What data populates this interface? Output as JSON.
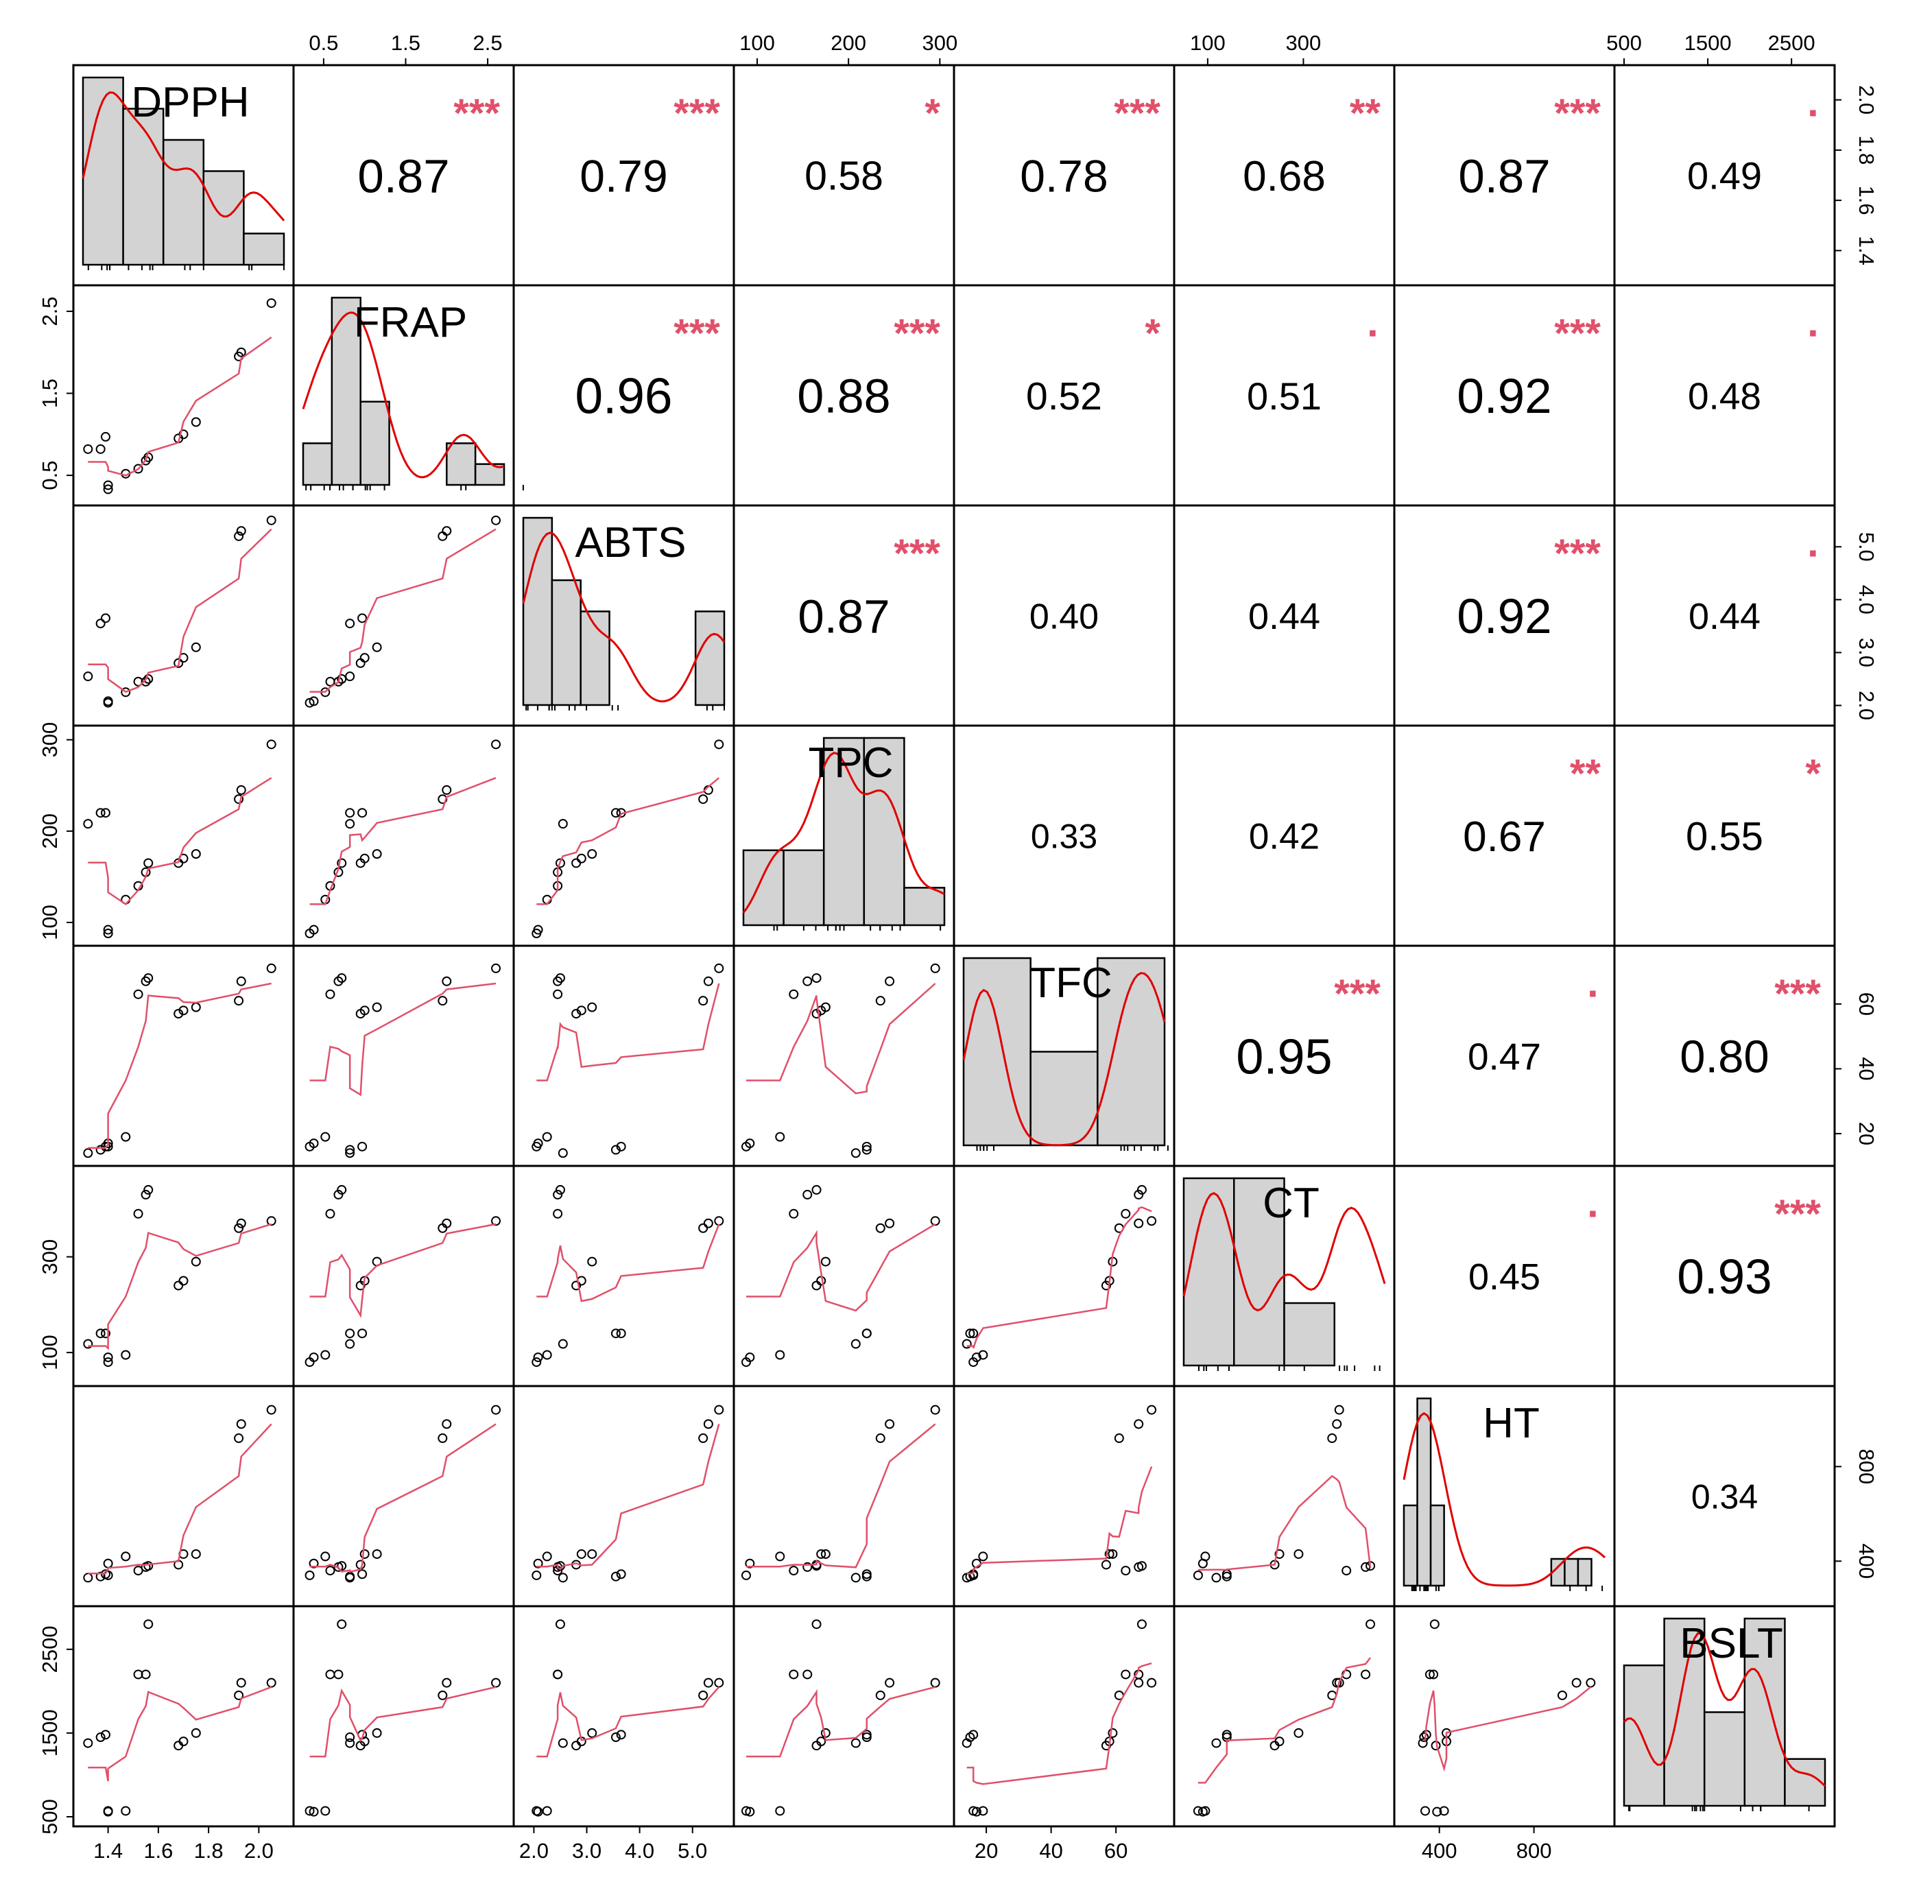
{
  "chart_data": {
    "type": "scatter",
    "variables": [
      "DPPH",
      "FRAP",
      "ABTS",
      "TPC",
      "TFC",
      "CT",
      "HT",
      "BSLT"
    ],
    "ticks": [
      {
        "values": [
          1.4,
          1.6,
          1.8,
          2.0
        ],
        "labels": [
          "1.4",
          "1.6",
          "1.8",
          "2.0"
        ],
        "side": "right,bottom"
      },
      {
        "values": [
          0.5,
          1.5,
          2.5
        ],
        "labels": [
          "0.5",
          "1.5",
          "2.5"
        ],
        "side": "top,left"
      },
      {
        "values": [
          2.0,
          3.0,
          4.0,
          5.0
        ],
        "labels": [
          "2.0",
          "3.0",
          "4.0",
          "5.0"
        ],
        "side": "right,bottom"
      },
      {
        "values": [
          100,
          200,
          300
        ],
        "labels": [
          "100",
          "200",
          "300"
        ],
        "side": "top,left"
      },
      {
        "values": [
          20,
          40,
          60
        ],
        "labels": [
          "20",
          "40",
          "60"
        ],
        "side": "right,bottom"
      },
      {
        "values": [
          100,
          300
        ],
        "labels": [
          "100",
          "300"
        ],
        "side": "top,left"
      },
      {
        "values": [
          400,
          800
        ],
        "labels": [
          "400",
          "800"
        ],
        "side": "right,bottom"
      },
      {
        "values": [
          500,
          1500,
          2500
        ],
        "labels": [
          "500",
          "1500",
          "2500"
        ],
        "side": "top,left"
      }
    ],
    "ranges": [
      [
        1.3,
        2.1
      ],
      [
        0.25,
        2.7
      ],
      [
        1.8,
        5.6
      ],
      [
        85,
        305
      ],
      [
        13,
        75
      ],
      [
        50,
        470
      ],
      [
        250,
        1100
      ],
      [
        500,
        2900
      ]
    ],
    "observations": [
      {
        "DPPH": 1.32,
        "FRAP": 0.82,
        "ABTS": 2.55,
        "TPC": 208,
        "TFC": 14,
        "CT": 118,
        "HT": 330,
        "BSLT": 1380
      },
      {
        "DPPH": 1.37,
        "FRAP": 0.82,
        "ABTS": 3.55,
        "TPC": 220,
        "TFC": 15,
        "CT": 140,
        "HT": 335,
        "BSLT": 1450
      },
      {
        "DPPH": 1.39,
        "FRAP": 0.97,
        "ABTS": 3.65,
        "TPC": 220,
        "TFC": 16,
        "CT": 140,
        "HT": 345,
        "BSLT": 1480
      },
      {
        "DPPH": 1.4,
        "FRAP": 0.33,
        "ABTS": 2.05,
        "TPC": 88,
        "TFC": 16,
        "CT": 80,
        "HT": 340,
        "BSLT": 570
      },
      {
        "DPPH": 1.4,
        "FRAP": 0.38,
        "ABTS": 2.08,
        "TPC": 92,
        "TFC": 17,
        "CT": 90,
        "HT": 390,
        "BSLT": 560
      },
      {
        "DPPH": 1.47,
        "FRAP": 0.52,
        "ABTS": 2.25,
        "TPC": 125,
        "TFC": 19,
        "CT": 95,
        "HT": 420,
        "BSLT": 570
      },
      {
        "DPPH": 1.52,
        "FRAP": 0.58,
        "ABTS": 2.45,
        "TPC": 140,
        "TFC": 63,
        "CT": 390,
        "HT": 360,
        "BSLT": 2200
      },
      {
        "DPPH": 1.55,
        "FRAP": 0.68,
        "ABTS": 2.45,
        "TPC": 155,
        "TFC": 67,
        "CT": 430,
        "HT": 375,
        "BSLT": 2200
      },
      {
        "DPPH": 1.56,
        "FRAP": 0.72,
        "ABTS": 2.5,
        "TPC": 165,
        "TFC": 68,
        "CT": 440,
        "HT": 380,
        "BSLT": 2800
      },
      {
        "DPPH": 1.68,
        "FRAP": 0.95,
        "ABTS": 2.8,
        "TPC": 165,
        "TFC": 57,
        "CT": 240,
        "HT": 385,
        "BSLT": 1350
      },
      {
        "DPPH": 1.7,
        "FRAP": 1.0,
        "ABTS": 2.9,
        "TPC": 170,
        "TFC": 58,
        "CT": 250,
        "HT": 430,
        "BSLT": 1400
      },
      {
        "DPPH": 1.75,
        "FRAP": 1.15,
        "ABTS": 3.1,
        "TPC": 175,
        "TFC": 59,
        "CT": 290,
        "HT": 430,
        "BSLT": 1500
      },
      {
        "DPPH": 1.92,
        "FRAP": 1.95,
        "ABTS": 5.2,
        "TPC": 235,
        "TFC": 61,
        "CT": 360,
        "HT": 920,
        "BSLT": 1950
      },
      {
        "DPPH": 1.93,
        "FRAP": 2.0,
        "ABTS": 5.3,
        "TPC": 245,
        "TFC": 67,
        "CT": 370,
        "HT": 980,
        "BSLT": 2100
      },
      {
        "DPPH": 2.05,
        "FRAP": 2.6,
        "ABTS": 5.5,
        "TPC": 295,
        "TFC": 71,
        "CT": 375,
        "HT": 1040,
        "BSLT": 2100
      }
    ],
    "correlations": [
      {
        "row": 0,
        "col": 1,
        "value": "0.87",
        "stars": "***"
      },
      {
        "row": 0,
        "col": 2,
        "value": "0.79",
        "stars": "***"
      },
      {
        "row": 0,
        "col": 3,
        "value": "0.58",
        "stars": "*"
      },
      {
        "row": 0,
        "col": 4,
        "value": "0.78",
        "stars": "***"
      },
      {
        "row": 0,
        "col": 5,
        "value": "0.68",
        "stars": "**"
      },
      {
        "row": 0,
        "col": 6,
        "value": "0.87",
        "stars": "***"
      },
      {
        "row": 0,
        "col": 7,
        "value": "0.49",
        "stars": "·"
      },
      {
        "row": 1,
        "col": 2,
        "value": "0.96",
        "stars": "***"
      },
      {
        "row": 1,
        "col": 3,
        "value": "0.88",
        "stars": "***"
      },
      {
        "row": 1,
        "col": 4,
        "value": "0.52",
        "stars": "*"
      },
      {
        "row": 1,
        "col": 5,
        "value": "0.51",
        "stars": "·"
      },
      {
        "row": 1,
        "col": 6,
        "value": "0.92",
        "stars": "***"
      },
      {
        "row": 1,
        "col": 7,
        "value": "0.48",
        "stars": "·"
      },
      {
        "row": 2,
        "col": 3,
        "value": "0.87",
        "stars": "***"
      },
      {
        "row": 2,
        "col": 4,
        "value": "0.40",
        "stars": ""
      },
      {
        "row": 2,
        "col": 5,
        "value": "0.44",
        "stars": ""
      },
      {
        "row": 2,
        "col": 6,
        "value": "0.92",
        "stars": "***"
      },
      {
        "row": 2,
        "col": 7,
        "value": "0.44",
        "stars": "·"
      },
      {
        "row": 3,
        "col": 4,
        "value": "0.33",
        "stars": ""
      },
      {
        "row": 3,
        "col": 5,
        "value": "0.42",
        "stars": ""
      },
      {
        "row": 3,
        "col": 6,
        "value": "0.67",
        "stars": "**"
      },
      {
        "row": 3,
        "col": 7,
        "value": "0.55",
        "stars": "*"
      },
      {
        "row": 4,
        "col": 5,
        "value": "0.95",
        "stars": "***"
      },
      {
        "row": 4,
        "col": 6,
        "value": "0.47",
        "stars": "·"
      },
      {
        "row": 4,
        "col": 7,
        "value": "0.80",
        "stars": "***"
      },
      {
        "row": 5,
        "col": 6,
        "value": "0.45",
        "stars": "·"
      },
      {
        "row": 5,
        "col": 7,
        "value": "0.93",
        "stars": "***"
      },
      {
        "row": 6,
        "col": 7,
        "value": "0.34",
        "stars": ""
      }
    ],
    "histograms": [
      {
        "var": "DPPH",
        "breaks": [
          1.3,
          1.45,
          1.6,
          1.75,
          1.9,
          2.05
        ],
        "counts": [
          6,
          5,
          4,
          3,
          1
        ]
      },
      {
        "var": "FRAP",
        "breaks": [
          0.3,
          0.6,
          0.9,
          1.2,
          1.5,
          1.8,
          2.1,
          2.4
        ],
        "counts": [
          2,
          9,
          4,
          0,
          0,
          2,
          1
        ]
      },
      {
        "var": "ABTS",
        "breaks": [
          2.0,
          2.5,
          3.0,
          3.5,
          4.0,
          4.5,
          5.0,
          5.5
        ],
        "counts": [
          6,
          4,
          3,
          0,
          0,
          0,
          3
        ]
      },
      {
        "var": "TPC",
        "breaks": [
          50,
          100,
          150,
          200,
          250,
          300
        ],
        "counts": [
          2,
          2,
          5,
          5,
          1
        ]
      },
      {
        "var": "TFC",
        "breaks": [
          10,
          30,
          50,
          70
        ],
        "counts": [
          8,
          4,
          8
        ]
      },
      {
        "var": "CT",
        "breaks": [
          50,
          150,
          250,
          350,
          450
        ],
        "counts": [
          6,
          6,
          2,
          0
        ]
      },
      {
        "var": "HT",
        "breaks": [
          300,
          350,
          400,
          450,
          500,
          550,
          600,
          650,
          700,
          750,
          800,
          850,
          900,
          950,
          1000,
          1050
        ],
        "counts": [
          3,
          7,
          3,
          0,
          0,
          0,
          0,
          0,
          0,
          0,
          0,
          1,
          1,
          1,
          0
        ]
      },
      {
        "var": "BSLT",
        "breaks": [
          500,
          1000,
          1500,
          2000,
          2500,
          3000
        ],
        "counts": [
          3,
          4,
          2,
          4,
          1
        ]
      }
    ]
  }
}
